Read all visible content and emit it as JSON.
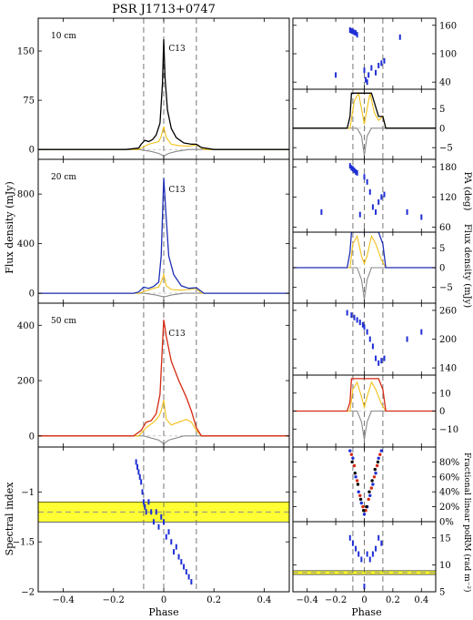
{
  "figure": {
    "title": "PSR J1713+0747",
    "xlabel": "Phase",
    "left_ylabel_profiles": "Flux density (mJy)",
    "left_ylabel_index": "Spectral index",
    "right_pa_label": "PA (deg)",
    "right_flux_label": "Flux density (mJy)",
    "right_frac_label": "Fractional linear pol.",
    "right_rm_label": "RM (rad m⁻²)",
    "colors": {
      "I10": "#000000",
      "I20": "#1f2fb5",
      "I50": "#d42a12",
      "linear": "#f2c21a",
      "circular": "#8a8a8a",
      "points": "#1f2fd5",
      "band": "#ffff33"
    }
  },
  "chart_data": [
    {
      "type": "line",
      "panel": "left-10cm",
      "band_label": "10 cm",
      "component_label": "C13",
      "xlim": [
        -0.5,
        0.5
      ],
      "ylim": [
        -15,
        200
      ],
      "yticks": [
        0,
        75,
        150
      ],
      "component_lines": [
        -0.08,
        0.0,
        0.13
      ],
      "series": [
        {
          "role": "total",
          "x": [
            -0.5,
            -0.15,
            -0.1,
            -0.09,
            -0.075,
            -0.06,
            -0.045,
            -0.03,
            -0.015,
            -0.005,
            0.0,
            0.005,
            0.015,
            0.03,
            0.05,
            0.08,
            0.11,
            0.13,
            0.15,
            0.2,
            0.5
          ],
          "y": [
            0,
            0,
            2,
            8,
            14,
            12,
            15,
            22,
            40,
            100,
            168,
            110,
            60,
            32,
            18,
            10,
            8,
            8,
            3,
            0,
            0
          ]
        },
        {
          "role": "linear",
          "x": [
            -0.5,
            -0.1,
            -0.08,
            -0.06,
            -0.04,
            -0.02,
            -0.01,
            0.0,
            0.01,
            0.03,
            0.06,
            0.1,
            0.13,
            0.16,
            0.5
          ],
          "y": [
            0,
            0,
            4,
            8,
            10,
            12,
            20,
            35,
            18,
            8,
            6,
            5,
            7,
            0,
            0
          ]
        },
        {
          "role": "circular",
          "x": [
            -0.5,
            -0.1,
            -0.05,
            -0.02,
            0.0,
            0.02,
            0.05,
            0.1,
            0.5
          ],
          "y": [
            0,
            0,
            -3,
            -6,
            -10,
            -6,
            -3,
            0,
            0
          ]
        }
      ]
    },
    {
      "type": "line",
      "panel": "left-20cm",
      "band_label": "20 cm",
      "component_label": "C13",
      "xlim": [
        -0.5,
        0.5
      ],
      "ylim": [
        -80,
        1080
      ],
      "yticks": [
        0,
        400,
        800
      ],
      "component_lines": [
        -0.08,
        0.0,
        0.13
      ],
      "series": [
        {
          "role": "total",
          "x": [
            -0.5,
            -0.12,
            -0.1,
            -0.08,
            -0.06,
            -0.04,
            -0.02,
            -0.01,
            0.0,
            0.01,
            0.02,
            0.04,
            0.07,
            0.1,
            0.13,
            0.16,
            0.5
          ],
          "y": [
            0,
            0,
            10,
            50,
            40,
            55,
            90,
            300,
            930,
            600,
            300,
            150,
            60,
            40,
            45,
            0,
            0
          ]
        },
        {
          "role": "linear",
          "x": [
            -0.5,
            -0.1,
            -0.07,
            -0.04,
            -0.02,
            -0.01,
            0.0,
            0.01,
            0.03,
            0.07,
            0.1,
            0.13,
            0.15,
            0.5
          ],
          "y": [
            0,
            0,
            20,
            40,
            50,
            90,
            150,
            60,
            30,
            25,
            30,
            40,
            0,
            0
          ]
        },
        {
          "role": "circular",
          "x": [
            -0.5,
            -0.08,
            -0.03,
            0.0,
            0.03,
            0.08,
            0.5
          ],
          "y": [
            0,
            0,
            -15,
            -30,
            -15,
            0,
            0
          ]
        }
      ]
    },
    {
      "type": "line",
      "panel": "left-50cm",
      "band_label": "50 cm",
      "component_label": "C13",
      "xlim": [
        -0.5,
        0.5
      ],
      "ylim": [
        -40,
        480
      ],
      "yticks": [
        0,
        200,
        400
      ],
      "component_lines": [
        -0.08,
        0.0,
        0.13
      ],
      "series": [
        {
          "role": "total",
          "x": [
            -0.5,
            -0.12,
            -0.09,
            -0.07,
            -0.05,
            -0.03,
            -0.015,
            -0.005,
            0.0,
            0.01,
            0.03,
            0.06,
            0.09,
            0.11,
            0.13,
            0.15,
            0.5
          ],
          "y": [
            0,
            0,
            20,
            50,
            55,
            80,
            150,
            330,
            420,
            360,
            270,
            200,
            140,
            90,
            30,
            0,
            0
          ]
        },
        {
          "role": "linear",
          "x": [
            -0.5,
            -0.1,
            -0.07,
            -0.04,
            -0.02,
            -0.01,
            0.0,
            0.01,
            0.03,
            0.06,
            0.09,
            0.11,
            0.13,
            0.15,
            0.5
          ],
          "y": [
            0,
            0,
            30,
            50,
            70,
            90,
            130,
            60,
            40,
            50,
            60,
            50,
            20,
            0,
            0
          ]
        },
        {
          "role": "circular",
          "x": [
            -0.5,
            -0.08,
            -0.02,
            0.0,
            0.02,
            0.08,
            0.5
          ],
          "y": [
            0,
            0,
            -15,
            -28,
            -15,
            0,
            0
          ]
        }
      ]
    },
    {
      "type": "scatter",
      "panel": "left-spectral-index",
      "xlim": [
        -0.5,
        0.5
      ],
      "ylim": [
        -2.0,
        -0.55
      ],
      "yticks": [
        -2,
        -1.5,
        -1
      ],
      "band": {
        "low": -1.3,
        "high": -1.1,
        "center": -1.2
      },
      "component_lines": [
        -0.08,
        0.0,
        0.13
      ],
      "points": {
        "x": [
          -0.11,
          -0.105,
          -0.1,
          -0.095,
          -0.09,
          -0.085,
          -0.08,
          -0.075,
          -0.07,
          -0.06,
          -0.05,
          -0.04,
          -0.03,
          -0.02,
          -0.01,
          0.0,
          0.01,
          0.02,
          0.03,
          0.04,
          0.05,
          0.06,
          0.07,
          0.08,
          0.09,
          0.1,
          0.11
        ],
        "y": [
          -0.7,
          -0.75,
          -0.8,
          -0.85,
          -0.9,
          -1.0,
          -1.1,
          -1.15,
          -1.2,
          -1.1,
          -1.2,
          -1.3,
          -1.2,
          -1.35,
          -1.25,
          -1.3,
          -1.45,
          -1.4,
          -1.5,
          -1.6,
          -1.55,
          -1.65,
          -1.7,
          -1.75,
          -1.8,
          -1.85,
          -1.9
        ]
      }
    },
    {
      "type": "scatter",
      "panel": "right-pa-10cm",
      "ylabel": "",
      "xlim": [
        -0.5,
        0.5
      ],
      "ylim": [
        25,
        175
      ],
      "yticks": [
        40,
        100,
        160
      ],
      "component_lines": [
        -0.08,
        0.0,
        0.13
      ],
      "points": {
        "x": [
          -0.2,
          -0.1,
          -0.09,
          -0.08,
          -0.07,
          -0.06,
          -0.05,
          0.0,
          0.01,
          0.02,
          0.03,
          0.05,
          0.08,
          0.1,
          0.12,
          0.14,
          0.25
        ],
        "y": [
          55,
          150,
          148,
          147,
          145,
          144,
          140,
          65,
          45,
          40,
          55,
          70,
          60,
          75,
          80,
          85,
          135
        ]
      }
    },
    {
      "type": "line",
      "panel": "right-flux-10cm",
      "xlim": [
        -0.5,
        0.5
      ],
      "ylim": [
        -8,
        10
      ],
      "yticks": [
        -5,
        0,
        5
      ],
      "component_lines": [
        -0.08,
        0.0,
        0.13
      ],
      "series": [
        {
          "role": "total",
          "x": [
            -0.5,
            -0.12,
            -0.1,
            -0.09,
            -0.05,
            0.0,
            0.05,
            0.1,
            0.13,
            0.15,
            0.5
          ],
          "y": [
            0,
            0,
            3,
            9,
            9,
            9,
            9,
            3,
            3,
            0,
            0
          ]
        },
        {
          "role": "linear",
          "x": [
            -0.5,
            -0.1,
            -0.07,
            -0.04,
            -0.02,
            0.0,
            0.02,
            0.04,
            0.07,
            0.1,
            0.13,
            0.15,
            0.5
          ],
          "y": [
            0,
            0,
            7,
            9,
            5,
            1,
            5,
            9,
            4,
            2,
            3,
            0,
            0
          ]
        },
        {
          "role": "circular",
          "x": [
            -0.5,
            -0.05,
            -0.02,
            0.0,
            0.02,
            0.05,
            0.5
          ],
          "y": [
            0,
            0,
            -2,
            -7,
            -2,
            0,
            0
          ]
        }
      ]
    },
    {
      "type": "scatter",
      "panel": "right-pa-20cm",
      "ylabel": "PA (deg)",
      "xlim": [
        -0.5,
        0.5
      ],
      "ylim": [
        50,
        195
      ],
      "yticks": [
        60,
        120,
        180
      ],
      "component_lines": [
        -0.08,
        0.0,
        0.13
      ],
      "points": {
        "x": [
          -0.3,
          -0.1,
          -0.09,
          -0.08,
          -0.07,
          -0.06,
          -0.05,
          -0.03,
          0.0,
          0.02,
          0.04,
          0.06,
          0.08,
          0.1,
          0.12,
          0.14,
          0.3,
          0.4
        ],
        "y": [
          90,
          182,
          178,
          176,
          173,
          170,
          168,
          85,
          160,
          150,
          130,
          100,
          90,
          110,
          120,
          125,
          90,
          80
        ]
      }
    },
    {
      "type": "line",
      "panel": "right-flux-20cm",
      "ylabel": "Flux density (mJy)",
      "xlim": [
        -0.5,
        0.5
      ],
      "ylim": [
        -9,
        9
      ],
      "yticks": [
        -5,
        0,
        5
      ],
      "component_lines": [
        -0.08,
        0.0,
        0.13
      ],
      "series": [
        {
          "role": "total",
          "x": [
            -0.5,
            -0.12,
            -0.1,
            -0.09,
            0.0,
            0.1,
            0.13,
            0.15,
            0.5
          ],
          "y": [
            0,
            0,
            4,
            9,
            9,
            9,
            6,
            0,
            0
          ]
        },
        {
          "role": "linear",
          "x": [
            -0.5,
            -0.1,
            -0.08,
            -0.05,
            -0.02,
            0.0,
            0.02,
            0.05,
            0.08,
            0.12,
            0.15,
            0.5
          ],
          "y": [
            0,
            0,
            6,
            8,
            3,
            1,
            3,
            8,
            6,
            2,
            0,
            0
          ]
        },
        {
          "role": "circular",
          "x": [
            -0.5,
            -0.05,
            -0.02,
            0.0,
            0.02,
            0.05,
            0.5
          ],
          "y": [
            0,
            0,
            -3,
            -8,
            -3,
            0,
            0
          ]
        }
      ]
    },
    {
      "type": "scatter",
      "panel": "right-pa-50cm",
      "xlim": [
        -0.5,
        0.5
      ],
      "ylim": [
        125,
        275
      ],
      "yticks": [
        140,
        200,
        260
      ],
      "component_lines": [
        -0.08,
        0.0,
        0.13
      ],
      "points": {
        "x": [
          -0.12,
          -0.09,
          -0.07,
          -0.05,
          -0.03,
          -0.01,
          0.0,
          0.02,
          0.04,
          0.06,
          0.08,
          0.1,
          0.12,
          0.14,
          0.3,
          0.4
        ],
        "y": [
          255,
          250,
          245,
          240,
          235,
          230,
          225,
          215,
          200,
          185,
          160,
          150,
          155,
          160,
          200,
          215
        ]
      }
    },
    {
      "type": "line",
      "panel": "right-flux-50cm",
      "xlim": [
        -0.5,
        0.5
      ],
      "ylim": [
        -20,
        20
      ],
      "yticks": [
        -10,
        0,
        10
      ],
      "component_lines": [
        -0.08,
        0.0,
        0.13
      ],
      "series": [
        {
          "role": "total",
          "x": [
            -0.5,
            -0.12,
            -0.1,
            -0.09,
            0.0,
            0.1,
            0.13,
            0.15,
            0.5
          ],
          "y": [
            0,
            0,
            5,
            18,
            18,
            18,
            12,
            0,
            0
          ]
        },
        {
          "role": "linear",
          "x": [
            -0.5,
            -0.1,
            -0.08,
            -0.05,
            -0.02,
            0.0,
            0.02,
            0.05,
            0.08,
            0.12,
            0.15,
            0.5
          ],
          "y": [
            0,
            0,
            12,
            16,
            8,
            2,
            8,
            16,
            12,
            4,
            0,
            0
          ]
        },
        {
          "role": "circular",
          "x": [
            -0.5,
            -0.05,
            -0.02,
            0.0,
            0.02,
            0.05,
            0.5
          ],
          "y": [
            0,
            0,
            -6,
            -16,
            -6,
            0,
            0
          ]
        }
      ]
    },
    {
      "type": "scatter",
      "panel": "right-frac-linear",
      "ylabel": "Fractional linear pol.",
      "xlim": [
        -0.5,
        0.5
      ],
      "ylim": [
        0,
        1.0
      ],
      "yticks": [
        0,
        0.2,
        0.4,
        0.6,
        0.8
      ],
      "ytick_labels": [
        "0%",
        "20%",
        "40%",
        "60%",
        "80%"
      ],
      "component_lines": [
        -0.08,
        0.0,
        0.13
      ],
      "series": [
        {
          "name": "",
          "color": "#1f2fd5",
          "x": [
            -0.1,
            -0.08,
            -0.06,
            -0.04,
            -0.02,
            0.0,
            0.02,
            0.04,
            0.06,
            0.08,
            0.1,
            0.12
          ],
          "y": [
            0.95,
            0.85,
            0.6,
            0.4,
            0.25,
            0.1,
            0.2,
            0.35,
            0.5,
            0.65,
            0.85,
            0.95
          ]
        },
        {
          "name": "",
          "color": "#d42a12",
          "x": [
            -0.09,
            -0.07,
            -0.05,
            -0.03,
            -0.01,
            0.01,
            0.03,
            0.05,
            0.07,
            0.09,
            0.11
          ],
          "y": [
            0.9,
            0.75,
            0.55,
            0.35,
            0.2,
            0.15,
            0.3,
            0.45,
            0.6,
            0.75,
            0.9
          ]
        },
        {
          "name": "",
          "color": "#000000",
          "x": [
            -0.085,
            -0.065,
            -0.045,
            -0.025,
            -0.005,
            0.015,
            0.035,
            0.055,
            0.075,
            0.095
          ],
          "y": [
            0.8,
            0.65,
            0.5,
            0.3,
            0.15,
            0.2,
            0.4,
            0.55,
            0.7,
            0.8
          ]
        }
      ]
    },
    {
      "type": "scatter",
      "panel": "right-rm",
      "ylabel": "RM (rad m⁻²)",
      "xlim": [
        -0.5,
        0.5
      ],
      "ylim": [
        5,
        18
      ],
      "yticks": [
        5,
        10,
        15
      ],
      "band": {
        "low": 8.2,
        "high": 8.9,
        "center": 8.55
      },
      "component_lines": [
        -0.08,
        0.0,
        0.13
      ],
      "points": {
        "x": [
          -0.1,
          -0.08,
          -0.06,
          -0.04,
          -0.02,
          0.0,
          0.02,
          0.04,
          0.06,
          0.08,
          0.1,
          0.12
        ],
        "y": [
          15,
          14,
          13,
          12,
          11,
          6,
          12,
          11,
          12,
          13,
          15,
          14
        ]
      }
    }
  ]
}
